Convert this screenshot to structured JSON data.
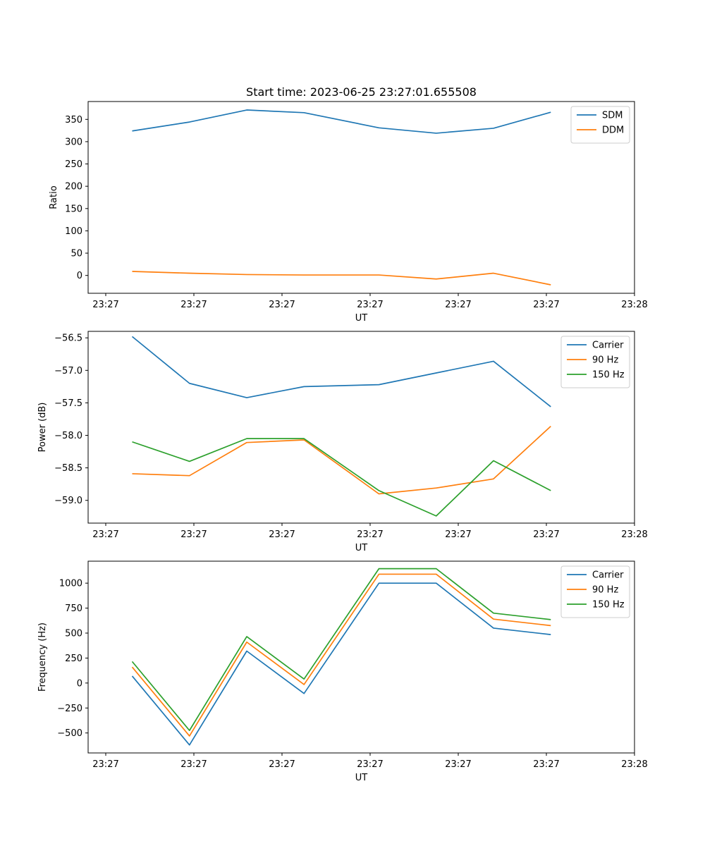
{
  "figure": {
    "title": "Start time: 2023-06-25 23:27:01.655508"
  },
  "colors": {
    "c0": "#1f77b4",
    "c1": "#ff7f0e",
    "c2": "#2ca02c"
  },
  "chart_data": [
    {
      "type": "line",
      "title": "Start time: 2023-06-25 23:27:01.655508",
      "xlabel": "UT",
      "ylabel": "Ratio",
      "xticks": [
        "23:27",
        "23:27",
        "23:27",
        "23:27",
        "23:27",
        "23:27",
        "23:28"
      ],
      "xlim": [
        -0.2,
        6.0
      ],
      "ylim": [
        -40,
        390
      ],
      "yticks": [
        0,
        50,
        100,
        150,
        200,
        250,
        300,
        350
      ],
      "grid": false,
      "legend_position": "upper right",
      "x": [
        0.3,
        0.95,
        1.6,
        2.25,
        3.1,
        3.75,
        4.4,
        5.05
      ],
      "series": [
        {
          "name": "SDM",
          "values": [
            324,
            344,
            371,
            365,
            331,
            319,
            330,
            366
          ]
        },
        {
          "name": "DDM",
          "values": [
            9,
            5,
            2,
            1,
            1,
            -8,
            5,
            -21
          ]
        }
      ]
    },
    {
      "type": "line",
      "xlabel": "UT",
      "ylabel": "Power (dB)",
      "xticks": [
        "23:27",
        "23:27",
        "23:27",
        "23:27",
        "23:27",
        "23:27",
        "23:28"
      ],
      "xlim": [
        -0.2,
        6.0
      ],
      "ylim": [
        -59.35,
        -56.4
      ],
      "yticks": [
        -59.0,
        -58.5,
        -58.0,
        -57.5,
        -57.0,
        -56.5
      ],
      "ytick_labels": [
        "−59.0",
        "−58.5",
        "−58.0",
        "−57.5",
        "−57.0",
        "−56.5"
      ],
      "grid": false,
      "legend_position": "upper right",
      "x": [
        0.3,
        0.95,
        1.6,
        2.25,
        3.1,
        3.75,
        4.4,
        5.05
      ],
      "series": [
        {
          "name": "Carrier",
          "values": [
            -56.48,
            -57.2,
            -57.42,
            -57.25,
            -57.22,
            -57.04,
            -56.86,
            -57.56
          ]
        },
        {
          "name": "90 Hz",
          "values": [
            -58.59,
            -58.62,
            -58.11,
            -58.07,
            -58.9,
            -58.81,
            -58.67,
            -57.86
          ]
        },
        {
          "name": "150 Hz",
          "values": [
            -58.1,
            -58.4,
            -58.05,
            -58.05,
            -58.85,
            -59.24,
            -58.39,
            -58.85
          ]
        }
      ]
    },
    {
      "type": "line",
      "xlabel": "UT",
      "ylabel": "Frequency (Hz)",
      "xticks": [
        "23:27",
        "23:27",
        "23:27",
        "23:27",
        "23:27",
        "23:27",
        "23:28"
      ],
      "xlim": [
        -0.2,
        6.0
      ],
      "ylim": [
        -700,
        1220
      ],
      "yticks": [
        -500,
        -250,
        0,
        250,
        500,
        750,
        1000
      ],
      "ytick_labels": [
        "−500",
        "−250",
        "0",
        "250",
        "500",
        "750",
        "1000"
      ],
      "grid": false,
      "legend_position": "upper right",
      "x": [
        0.3,
        0.95,
        1.6,
        2.25,
        3.1,
        3.75,
        4.4,
        5.05
      ],
      "series": [
        {
          "name": "Carrier",
          "values": [
            70,
            -620,
            320,
            -105,
            1000,
            1000,
            550,
            485
          ]
        },
        {
          "name": "90 Hz",
          "values": [
            160,
            -530,
            410,
            -15,
            1090,
            1090,
            640,
            575
          ]
        },
        {
          "name": "150 Hz",
          "values": [
            215,
            -475,
            465,
            40,
            1145,
            1145,
            700,
            635
          ]
        }
      ]
    }
  ]
}
